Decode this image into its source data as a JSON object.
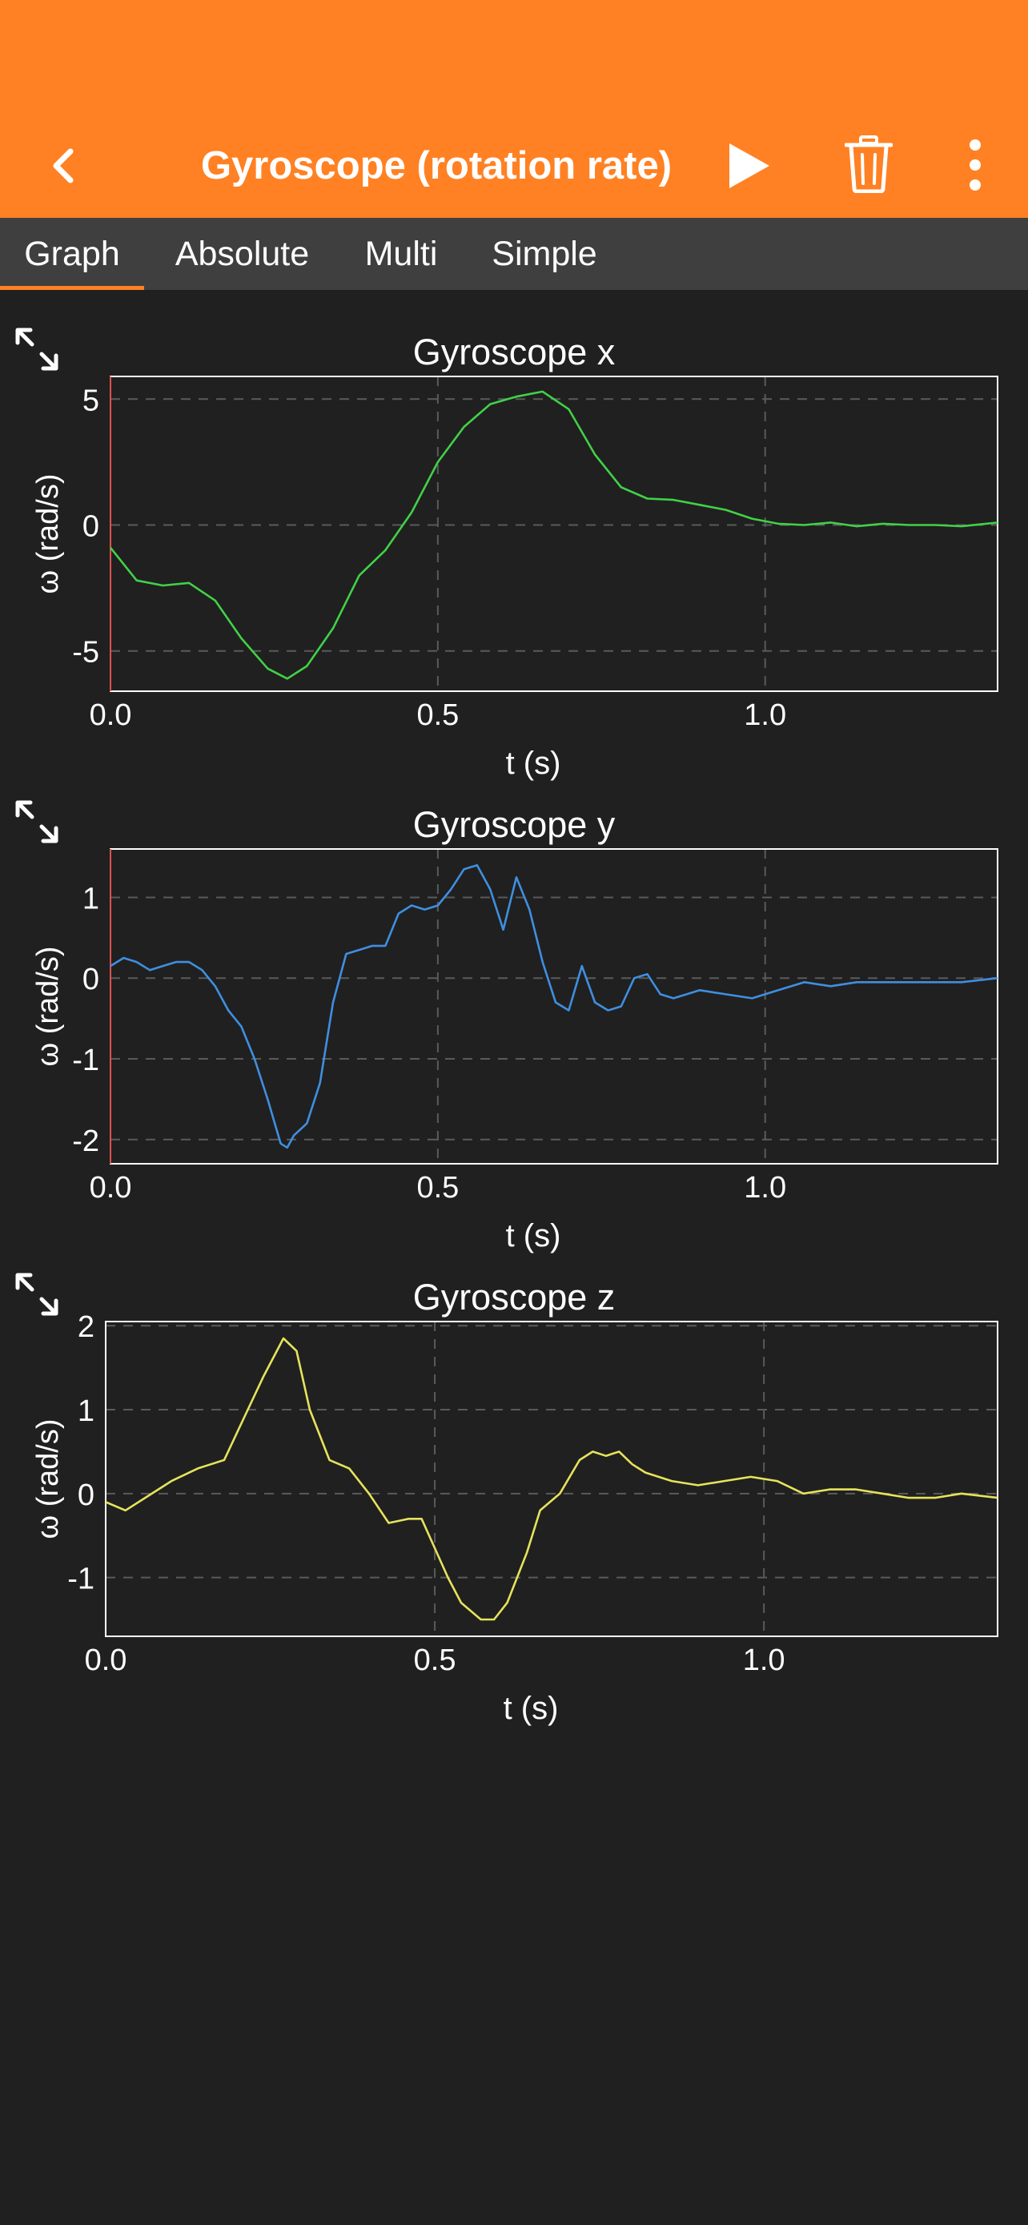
{
  "header": {
    "title": "Gyroscope (rotation rate)",
    "background": "#FF8123",
    "back_icon": "chevron-left-icon",
    "play_icon": "play-icon",
    "trash_icon": "trash-icon",
    "more_icon": "more-vertical-icon"
  },
  "tabs": [
    {
      "label": "Graph",
      "active": true
    },
    {
      "label": "Absolute",
      "active": false
    },
    {
      "label": "Multi",
      "active": false
    },
    {
      "label": "Simple",
      "active": false
    }
  ],
  "chart_data": [
    {
      "type": "line",
      "title": "Gyroscope x",
      "xlabel": "t (s)",
      "ylabel": "ω (rad/s)",
      "color": "#41D147",
      "xlim": [
        0,
        1.355
      ],
      "ylim": [
        -6.6,
        5.9
      ],
      "xticks": [
        "0.0",
        "0.5",
        "1.0"
      ],
      "yticks": [
        "5",
        "0",
        "-5"
      ],
      "x": [
        0.0,
        0.04,
        0.08,
        0.12,
        0.16,
        0.2,
        0.24,
        0.27,
        0.3,
        0.34,
        0.38,
        0.42,
        0.46,
        0.5,
        0.54,
        0.58,
        0.62,
        0.66,
        0.7,
        0.74,
        0.78,
        0.82,
        0.86,
        0.9,
        0.94,
        0.98,
        1.02,
        1.06,
        1.1,
        1.14,
        1.18,
        1.22,
        1.26,
        1.3,
        1.355
      ],
      "values": [
        -0.9,
        -2.2,
        -2.4,
        -2.3,
        -3.0,
        -4.5,
        -5.7,
        -6.1,
        -5.6,
        -4.1,
        -2.0,
        -1.0,
        0.5,
        2.5,
        3.9,
        4.8,
        5.1,
        5.3,
        4.6,
        2.8,
        1.5,
        1.05,
        1.0,
        0.8,
        0.6,
        0.25,
        0.05,
        0.0,
        0.1,
        -0.05,
        0.05,
        0.0,
        0.0,
        -0.05,
        0.1
      ]
    },
    {
      "type": "line",
      "title": "Gyroscope y",
      "xlabel": "t (s)",
      "ylabel": "ω (rad/s)",
      "color": "#3F8FE0",
      "xlim": [
        0,
        1.355
      ],
      "ylim": [
        -2.3,
        1.6
      ],
      "xticks": [
        "0.0",
        "0.5",
        "1.0"
      ],
      "yticks": [
        "1",
        "0",
        "-1",
        "-2"
      ],
      "x": [
        0.0,
        0.02,
        0.04,
        0.06,
        0.08,
        0.1,
        0.12,
        0.14,
        0.16,
        0.18,
        0.2,
        0.22,
        0.24,
        0.26,
        0.27,
        0.28,
        0.3,
        0.32,
        0.34,
        0.36,
        0.38,
        0.4,
        0.42,
        0.44,
        0.46,
        0.48,
        0.5,
        0.52,
        0.54,
        0.56,
        0.58,
        0.6,
        0.62,
        0.64,
        0.66,
        0.68,
        0.7,
        0.72,
        0.74,
        0.76,
        0.78,
        0.8,
        0.82,
        0.84,
        0.86,
        0.88,
        0.9,
        0.94,
        0.98,
        1.02,
        1.06,
        1.1,
        1.14,
        1.18,
        1.22,
        1.26,
        1.3,
        1.355
      ],
      "values": [
        0.15,
        0.25,
        0.2,
        0.1,
        0.15,
        0.2,
        0.2,
        0.1,
        -0.1,
        -0.4,
        -0.6,
        -1.0,
        -1.5,
        -2.05,
        -2.1,
        -1.95,
        -1.8,
        -1.3,
        -0.3,
        0.3,
        0.35,
        0.4,
        0.4,
        0.8,
        0.9,
        0.85,
        0.9,
        1.1,
        1.35,
        1.4,
        1.1,
        0.6,
        1.25,
        0.85,
        0.2,
        -0.3,
        -0.4,
        0.15,
        -0.3,
        -0.4,
        -0.35,
        0.0,
        0.05,
        -0.2,
        -0.25,
        -0.2,
        -0.15,
        -0.2,
        -0.25,
        -0.15,
        -0.05,
        -0.1,
        -0.05,
        -0.05,
        -0.05,
        -0.05,
        -0.05,
        0.0
      ]
    },
    {
      "type": "line",
      "title": "Gyroscope z",
      "xlabel": "t (s)",
      "ylabel": "ω (rad/s)",
      "color": "#E6E35C",
      "xlim": [
        0,
        1.355
      ],
      "ylim": [
        -1.7,
        2.05
      ],
      "xticks": [
        "0.0",
        "0.5",
        "1.0"
      ],
      "yticks": [
        "2",
        "1",
        "0",
        "-1"
      ],
      "x": [
        0.0,
        0.03,
        0.06,
        0.1,
        0.14,
        0.18,
        0.21,
        0.24,
        0.27,
        0.29,
        0.31,
        0.34,
        0.37,
        0.4,
        0.43,
        0.46,
        0.48,
        0.5,
        0.52,
        0.54,
        0.57,
        0.59,
        0.61,
        0.64,
        0.66,
        0.69,
        0.72,
        0.74,
        0.76,
        0.78,
        0.8,
        0.82,
        0.86,
        0.9,
        0.94,
        0.98,
        1.02,
        1.06,
        1.1,
        1.14,
        1.18,
        1.22,
        1.26,
        1.3,
        1.355
      ],
      "values": [
        -0.1,
        -0.2,
        -0.05,
        0.15,
        0.3,
        0.4,
        0.9,
        1.4,
        1.85,
        1.7,
        1.0,
        0.4,
        0.3,
        0.0,
        -0.35,
        -0.3,
        -0.3,
        -0.65,
        -1.0,
        -1.3,
        -1.5,
        -1.5,
        -1.3,
        -0.7,
        -0.2,
        0.0,
        0.4,
        0.5,
        0.45,
        0.5,
        0.35,
        0.25,
        0.15,
        0.1,
        0.15,
        0.2,
        0.15,
        0.0,
        0.05,
        0.05,
        0.0,
        -0.05,
        -0.05,
        0.0,
        -0.05
      ]
    }
  ]
}
